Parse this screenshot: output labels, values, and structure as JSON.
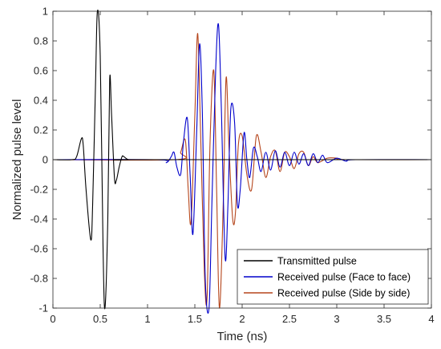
{
  "chart_data": {
    "type": "line",
    "title": "",
    "xlabel": "Time (ns)",
    "ylabel": "Normalized pulse level",
    "xlim": [
      0,
      4
    ],
    "ylim": [
      -1,
      1
    ],
    "xticks": [
      0,
      0.5,
      1,
      1.5,
      2,
      2.5,
      3,
      3.5,
      4
    ],
    "xtick_labels": [
      "0",
      "0.5",
      "1",
      "1.5",
      "2",
      "2.5",
      "3",
      "3.5",
      "4"
    ],
    "yticks": [
      -1,
      -0.8,
      -0.6,
      -0.4,
      -0.2,
      0,
      0.2,
      0.4,
      0.6,
      0.8,
      1
    ],
    "ytick_labels": [
      "-1",
      "-0.8",
      "-0.6",
      "-0.4",
      "-0.2",
      "0",
      "0.2",
      "0.4",
      "0.6",
      "0.8",
      "1"
    ],
    "grid": false,
    "legend_position": "bottom-right",
    "series": [
      {
        "name": "Transmitted pulse",
        "color": "#000000",
        "x": [
          0,
          0.2,
          0.25,
          0.3,
          0.32,
          0.35,
          0.4,
          0.42,
          0.45,
          0.47,
          0.5,
          0.53,
          0.55,
          0.58,
          0.6,
          0.62,
          0.65,
          0.67,
          0.7,
          0.73,
          0.75,
          0.8,
          0.9,
          4
        ],
        "y": [
          0,
          0,
          0.02,
          0.14,
          0.1,
          -0.2,
          -0.54,
          -0.3,
          0.5,
          1.0,
          0.7,
          -0.6,
          -1.0,
          -0.4,
          0.54,
          0.3,
          -0.12,
          -0.14,
          -0.05,
          0.02,
          0.02,
          0,
          0,
          0
        ]
      },
      {
        "name": "Received pulse (Face to face)",
        "color": "#0000cc",
        "x": [
          0,
          1.1,
          1.2,
          1.25,
          1.28,
          1.31,
          1.35,
          1.38,
          1.42,
          1.45,
          1.48,
          1.52,
          1.55,
          1.58,
          1.61,
          1.65,
          1.68,
          1.72,
          1.75,
          1.78,
          1.82,
          1.85,
          1.88,
          1.92,
          1.95,
          1.98,
          2.02,
          2.05,
          2.08,
          2.12,
          2.16,
          2.2,
          2.25,
          2.3,
          2.35,
          2.4,
          2.45,
          2.5,
          2.55,
          2.6,
          2.65,
          2.7,
          2.75,
          2.8,
          2.85,
          2.9,
          3.0,
          3.1,
          3.2,
          4
        ],
        "y": [
          0,
          0,
          -0.02,
          0.02,
          0.05,
          -0.05,
          -0.1,
          0.12,
          0.28,
          -0.1,
          -0.5,
          0.2,
          0.78,
          0.3,
          -0.8,
          -1.0,
          -0.3,
          0.6,
          0.91,
          0.35,
          -0.66,
          -0.3,
          0.34,
          0.25,
          -0.3,
          -0.2,
          0.18,
          0.0,
          -0.12,
          0.08,
          0.02,
          -0.08,
          0.05,
          -0.07,
          0.06,
          -0.05,
          0.05,
          -0.04,
          0.05,
          -0.03,
          0.04,
          -0.04,
          0.04,
          -0.02,
          0.03,
          -0.02,
          0.01,
          -0.01,
          0,
          0
        ]
      },
      {
        "name": "Received pulse (Side by side)",
        "color": "#b5451b",
        "x": [
          0,
          1.3,
          1.35,
          1.4,
          1.43,
          1.46,
          1.5,
          1.53,
          1.56,
          1.6,
          1.63,
          1.66,
          1.7,
          1.73,
          1.76,
          1.8,
          1.83,
          1.86,
          1.9,
          1.93,
          1.96,
          2.0,
          2.05,
          2.1,
          2.15,
          2.2,
          2.25,
          2.3,
          2.35,
          2.4,
          2.45,
          2.5,
          2.55,
          2.6,
          2.65,
          2.7,
          2.75,
          2.8,
          2.9,
          3.0,
          3.1,
          4
        ],
        "y": [
          0,
          0,
          0.05,
          0.13,
          -0.2,
          -0.42,
          0.3,
          0.85,
          0.2,
          -0.75,
          -0.92,
          0.1,
          0.6,
          -0.2,
          -1.0,
          -0.3,
          0.55,
          0.1,
          -0.4,
          -0.35,
          0.1,
          0.16,
          -0.1,
          -0.2,
          0.16,
          0.05,
          -0.12,
          0.02,
          0.06,
          -0.08,
          0.05,
          0.02,
          -0.06,
          0.04,
          0.05,
          -0.04,
          0.02,
          -0.02,
          0.01,
          0.01,
          0,
          0
        ]
      }
    ]
  }
}
